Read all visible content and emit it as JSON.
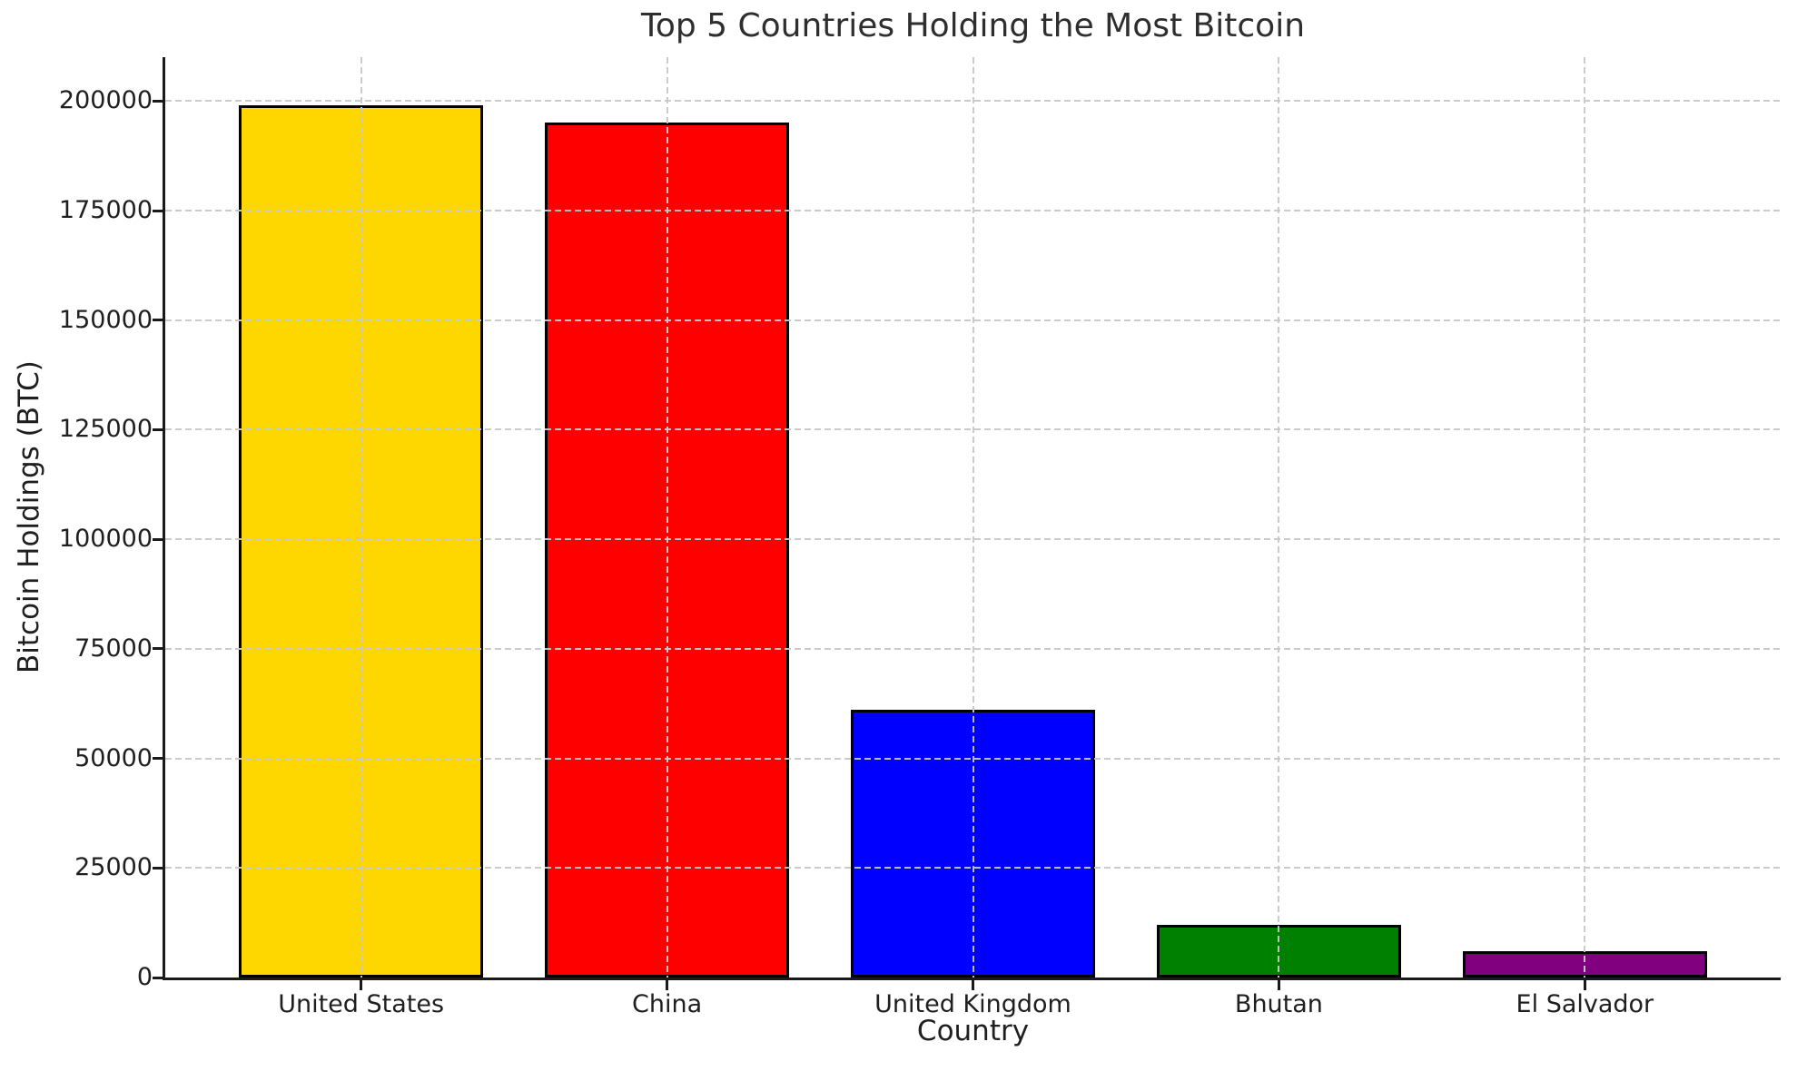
{
  "chart_data": {
    "type": "bar",
    "title": "Top 5 Countries Holding the Most Bitcoin",
    "xlabel": "Country",
    "ylabel": "Bitcoin Holdings (BTC)",
    "categories": [
      "United States",
      "China",
      "United Kingdom",
      "Bhutan",
      "El Salvador"
    ],
    "values": [
      199000,
      195000,
      61000,
      12000,
      6000
    ],
    "bar_colors": [
      "#FFD700",
      "#FF0000",
      "#0000FF",
      "#008000",
      "#800080"
    ],
    "bar_edge_color": "#000000",
    "ylim": [
      0,
      210000
    ],
    "yticks": [
      0,
      25000,
      50000,
      75000,
      100000,
      125000,
      150000,
      175000,
      200000
    ],
    "ytick_labels": [
      "0",
      "25000",
      "50000",
      "75000",
      "100000",
      "125000",
      "150000",
      "175000",
      "200000"
    ],
    "grid": "dashed, drawn above bars, horizontal and vertical",
    "grid_color": "#cccccc",
    "text_color": "#1f1f1f",
    "title_color": "#2e2e2e",
    "legend": "none",
    "bar_relative_width": 0.8
  }
}
